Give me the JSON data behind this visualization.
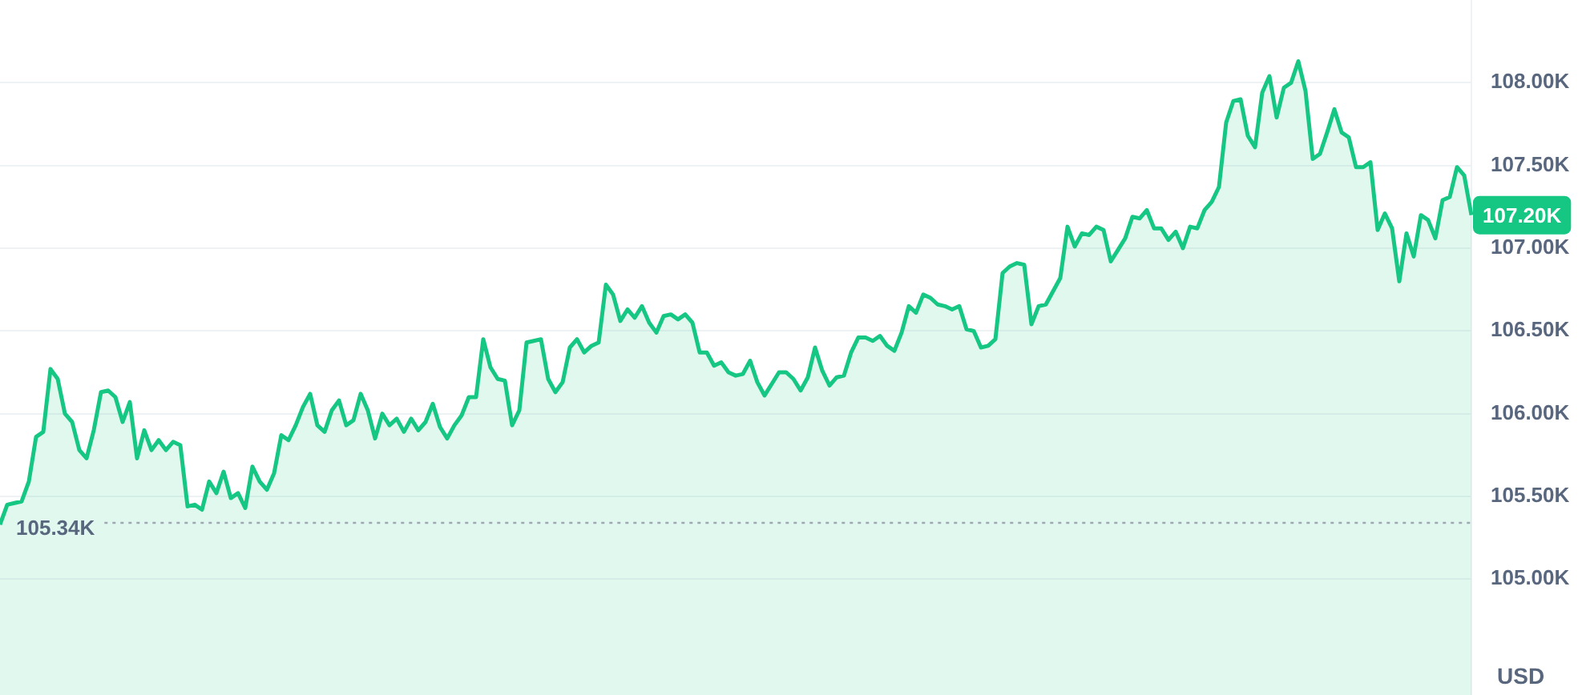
{
  "chart_data": {
    "type": "area",
    "ylabel": "USD",
    "categories": [
      null,
      null,
      null,
      null,
      null,
      null,
      null,
      null,
      null,
      null,
      null,
      null,
      null,
      null,
      null,
      null,
      null,
      null,
      null,
      null,
      null,
      null,
      null,
      null,
      null,
      null,
      null,
      null,
      null,
      null,
      null,
      null,
      null,
      null,
      null,
      null,
      null,
      null,
      null,
      null,
      null,
      null,
      null,
      null,
      null,
      null,
      null,
      null,
      null,
      null,
      null,
      null,
      null,
      null,
      null,
      null,
      null,
      null,
      null,
      null,
      null,
      null,
      null,
      null,
      null,
      null,
      null,
      null,
      null,
      null,
      null,
      null,
      null,
      null,
      null,
      null,
      null,
      null,
      null,
      null,
      null,
      null,
      null,
      null,
      null,
      null,
      null,
      null,
      null,
      null,
      null,
      null,
      null,
      null,
      null,
      null,
      null,
      null,
      null,
      null,
      null,
      null,
      null,
      null,
      null,
      null,
      null,
      null,
      null,
      null,
      null,
      null,
      null,
      null,
      null,
      null,
      null,
      null,
      null,
      null,
      null,
      null,
      null,
      null,
      null,
      null,
      null,
      null,
      null,
      null,
      null,
      null,
      null,
      null,
      null,
      null,
      null,
      null,
      null,
      null,
      null,
      null,
      null,
      null,
      null,
      null,
      null,
      null,
      null,
      null,
      null,
      null,
      null,
      null,
      null,
      null,
      null,
      null,
      null,
      null,
      null,
      null,
      null,
      null,
      null,
      null,
      null,
      null,
      null,
      null,
      null,
      null,
      null,
      null,
      null,
      null,
      null,
      null,
      null,
      null,
      null,
      null,
      null,
      null,
      null,
      null,
      null,
      null,
      null,
      null,
      null,
      null,
      null,
      null,
      null,
      null,
      null,
      null,
      null,
      null,
      null,
      null,
      null,
      null,
      null
    ],
    "series": [
      {
        "color": "#16c784",
        "values": [
          105330,
          105450,
          105460,
          105470,
          105590,
          105860,
          105890,
          106270,
          106210,
          106000,
          105950,
          105780,
          105730,
          105900,
          106130,
          106140,
          106100,
          105950,
          106070,
          105730,
          105900,
          105780,
          105840,
          105780,
          105830,
          105810,
          105440,
          105450,
          105420,
          105590,
          105520,
          105650,
          105490,
          105520,
          105430,
          105680,
          105590,
          105540,
          105640,
          105870,
          105840,
          105930,
          106040,
          106120,
          105930,
          105890,
          106020,
          106080,
          105930,
          105960,
          106120,
          106020,
          105850,
          106000,
          105930,
          105970,
          105890,
          105970,
          105900,
          105950,
          106060,
          105920,
          105850,
          105930,
          105990,
          106100,
          106100,
          106450,
          106280,
          106210,
          106200,
          105930,
          106020,
          106430,
          106440,
          106450,
          106210,
          106130,
          106190,
          106400,
          106450,
          106370,
          106410,
          106430,
          106780,
          106720,
          106560,
          106630,
          106580,
          106650,
          106550,
          106490,
          106590,
          106600,
          106570,
          106600,
          106550,
          106370,
          106370,
          106290,
          106310,
          106250,
          106230,
          106240,
          106320,
          106190,
          106110,
          106180,
          106250,
          106250,
          106210,
          106140,
          106220,
          106400,
          106260,
          106170,
          106220,
          106230,
          106370,
          106460,
          106460,
          106440,
          106470,
          106410,
          106380,
          106490,
          106650,
          106610,
          106720,
          106700,
          106660,
          106650,
          106630,
          106650,
          106510,
          106500,
          106400,
          106410,
          106450,
          106850,
          106890,
          106910,
          106900,
          106540,
          106650,
          106660,
          106740,
          106820,
          107130,
          107010,
          107090,
          107080,
          107130,
          107110,
          106920,
          106990,
          107060,
          107190,
          107180,
          107230,
          107120,
          107120,
          107050,
          107100,
          107000,
          107130,
          107120,
          107230,
          107280,
          107370,
          107760,
          107890,
          107900,
          107680,
          107610,
          107940,
          108040,
          107790,
          107970,
          108000,
          108130,
          107950,
          107540,
          107570,
          107700,
          107840,
          107700,
          107670,
          107490,
          107490,
          107520,
          107110,
          107210,
          107120,
          106800,
          107090,
          106950,
          107200,
          107170,
          107060,
          107290,
          107310,
          107490,
          107440,
          107200
        ]
      }
    ],
    "ylim": [
      104300,
      108500
    ],
    "yticks": [
      {
        "value": 105000,
        "label": "105.00K"
      },
      {
        "value": 105500,
        "label": "105.50K"
      },
      {
        "value": 106000,
        "label": "106.00K"
      },
      {
        "value": 106500,
        "label": "106.50K"
      },
      {
        "value": 107000,
        "label": "107.00K"
      },
      {
        "value": 107500,
        "label": "107.50K"
      },
      {
        "value": 108000,
        "label": "108.00K"
      }
    ],
    "grid": "y",
    "tick_labels": "y",
    "ref_lines": [
      {
        "axis": "y",
        "value": 105340,
        "label": "105.34K",
        "color": "#a0a7b4",
        "line_style": "dotted"
      }
    ],
    "annotations": [
      "107.20K"
    ]
  }
}
